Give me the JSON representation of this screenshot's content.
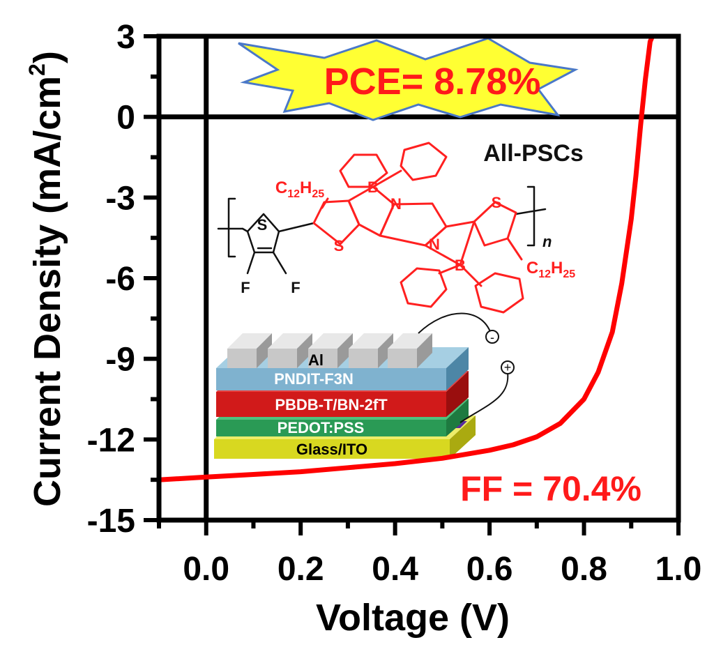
{
  "chart_data": {
    "type": "line",
    "xlabel": "Voltage (V)",
    "ylabel": "Current Density",
    "ylabel_unit": "mA/cm",
    "ylabel_unit_sup": "2",
    "xlim": [
      -0.1,
      1.0
    ],
    "ylim": [
      -15,
      3
    ],
    "x_ticks": [
      "0.0",
      "0.2",
      "0.4",
      "0.6",
      "0.8",
      "1.0"
    ],
    "y_ticks": [
      "3",
      "0",
      "-3",
      "-6",
      "-9",
      "-12",
      "-15"
    ],
    "series": [
      {
        "color": "#ff0000",
        "x": [
          -0.1,
          0.0,
          0.1,
          0.2,
          0.3,
          0.4,
          0.5,
          0.6,
          0.65,
          0.7,
          0.75,
          0.8,
          0.83,
          0.86,
          0.88,
          0.9,
          0.91,
          0.92,
          0.93,
          0.94,
          0.945
        ],
        "y": [
          -13.5,
          -13.4,
          -13.3,
          -13.2,
          -13.05,
          -12.9,
          -12.7,
          -12.4,
          -12.2,
          -11.9,
          -11.4,
          -10.5,
          -9.5,
          -8.0,
          -6.2,
          -3.8,
          -2.2,
          -0.3,
          1.4,
          2.8,
          3.0
        ]
      }
    ],
    "annotations": {
      "pce": "PCE= 8.78%",
      "ff": "FF = 70.4%",
      "device_label": "All-PSCs"
    },
    "grid": false
  },
  "inset": {
    "molecule": {
      "alkyl_c": "C",
      "alkyl_c_sub": "12",
      "alkyl_h": "H",
      "alkyl_h_sub": "25",
      "atom_s": "S",
      "atom_n": "N",
      "atom_b": "B",
      "atom_f": "F",
      "repeat_n": "n"
    },
    "device_layers": {
      "electrode": "Al",
      "etl": "PNDIT-F3N",
      "active": "PBDB-T/BN-2fT",
      "htl": "PEDOT:PSS",
      "substrate": "Glass/ITO",
      "minus": "-",
      "plus": "+"
    }
  },
  "colors": {
    "curve": "#ff0000",
    "annotation_red": "#ff1a1a",
    "burst_fill": "#ffff33",
    "burst_stroke": "#4a78c8",
    "al": "#c8c8c8",
    "etl": "#7fb2cf",
    "active": "#d11a1a",
    "htl": "#2a9a55",
    "substrate": "#d8d820"
  }
}
